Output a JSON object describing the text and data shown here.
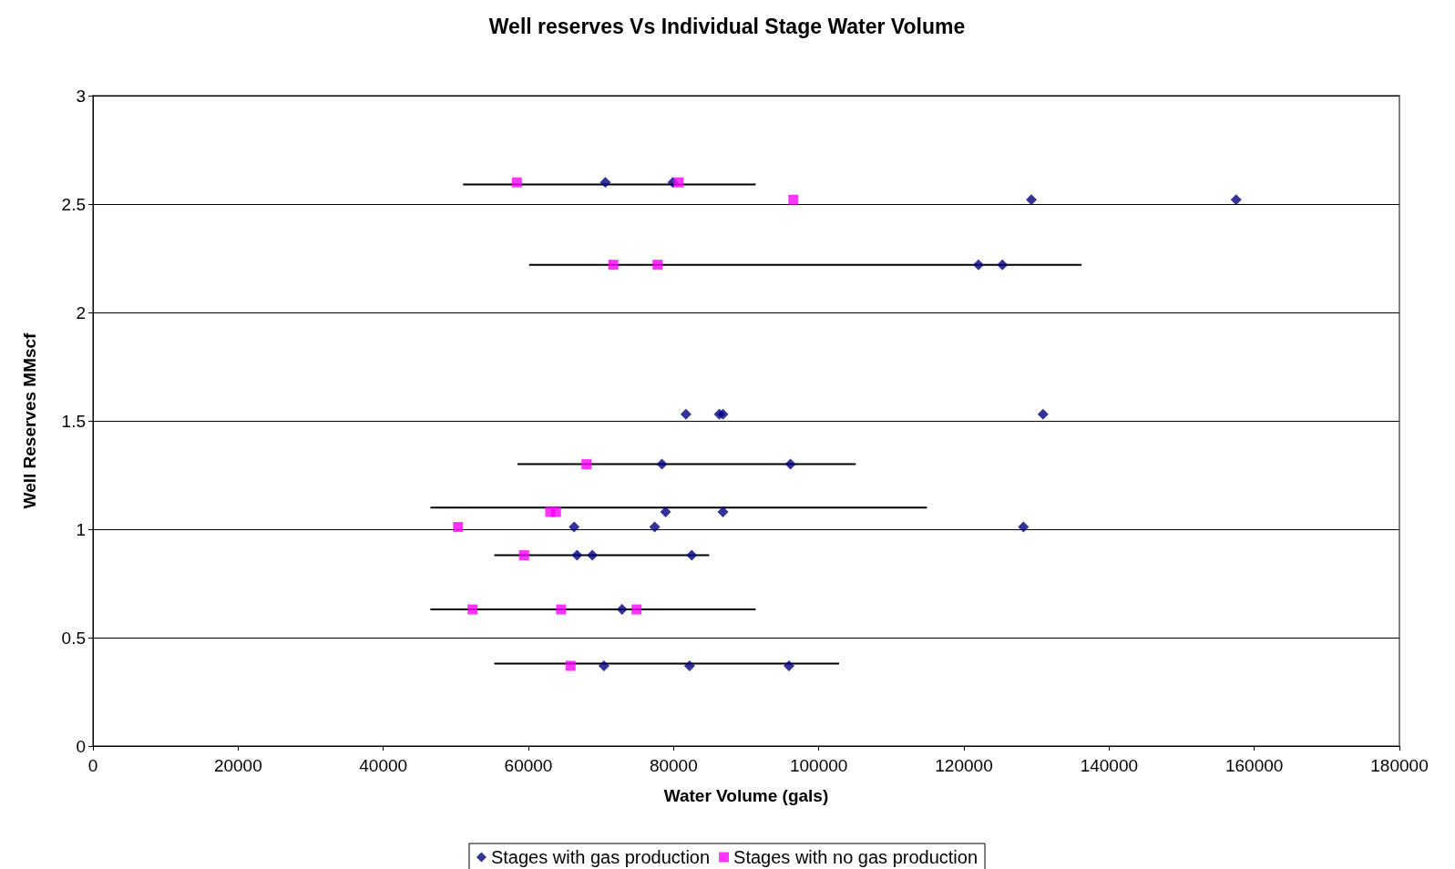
{
  "chart_data": {
    "type": "scatter",
    "title": "Well reserves Vs Individual Stage Water Volume",
    "xlabel": "Water Volume (gals)",
    "ylabel": "Well Reserves MMscf",
    "xlim": [
      0,
      180000
    ],
    "xticks": [
      0,
      20000,
      40000,
      60000,
      80000,
      100000,
      120000,
      140000,
      160000,
      180000
    ],
    "ylim": [
      0,
      3
    ],
    "yticks": [
      0,
      0.5,
      1,
      1.5,
      2,
      2.5,
      3
    ],
    "grid": "y",
    "legend": "bottom",
    "series": [
      {
        "name": "Stages with gas production",
        "color": "#000080",
        "marker": "diamond",
        "x": [
          70600,
          79900,
          129300,
          157500,
          122000,
          125300,
          81700,
          86300,
          86800,
          130900,
          78400,
          96100,
          78900,
          86800,
          66300,
          77400,
          128200,
          66700,
          68800,
          82500,
          72900,
          70400,
          82200,
          95900
        ],
        "values": [
          2.6,
          2.6,
          2.52,
          2.52,
          2.22,
          2.22,
          1.53,
          1.53,
          1.53,
          1.53,
          1.3,
          1.3,
          1.08,
          1.08,
          1.01,
          1.01,
          1.01,
          0.88,
          0.88,
          0.88,
          0.63,
          0.37,
          0.37,
          0.37
        ]
      },
      {
        "name": "Stages with no gas production",
        "color": "#ff00ff",
        "marker": "square",
        "x": [
          58400,
          80700,
          96500,
          71700,
          77800,
          68000,
          63000,
          63800,
          50300,
          59400,
          52300,
          64500,
          74900,
          65800
        ],
        "values": [
          2.6,
          2.6,
          2.52,
          2.22,
          2.22,
          1.3,
          1.08,
          1.08,
          1.01,
          0.88,
          0.63,
          0.63,
          0.63,
          0.37
        ]
      },
      {
        "type": "line",
        "color": "#000000",
        "marker": "none",
        "line_style": "solid",
        "x": [
          51000,
          91300,
          null,
          60100,
          136200,
          null,
          58500,
          105100,
          null,
          46500,
          114900,
          null,
          55300,
          84900,
          null,
          46500,
          91300,
          null,
          55300,
          102800
        ],
        "values": [
          2.59,
          2.59,
          null,
          2.22,
          2.22,
          null,
          1.3,
          1.3,
          null,
          1.1,
          1.1,
          null,
          0.88,
          0.88,
          null,
          0.63,
          0.63,
          null,
          0.38,
          0.38
        ]
      }
    ]
  }
}
